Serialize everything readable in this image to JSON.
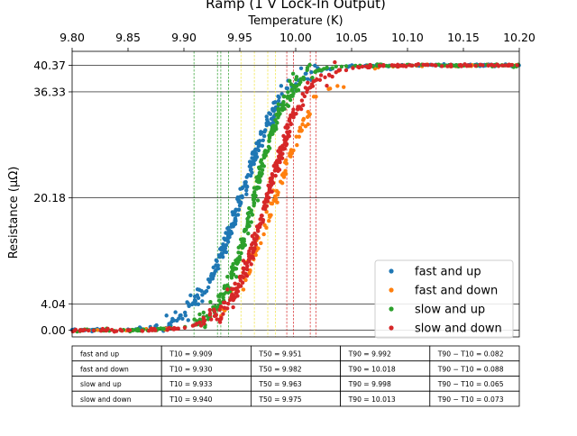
{
  "chart_data": {
    "type": "scatter",
    "title": "Ramp (1 V Lock-In Output)",
    "xlabel": "Temperature (K)",
    "ylabel": "Resistance (μΩ)",
    "xlim": [
      9.8,
      10.2
    ],
    "ylim": [
      -1.0,
      42.5
    ],
    "xticks": [
      "9.80",
      "9.85",
      "9.90",
      "9.95",
      "10.00",
      "10.05",
      "10.10",
      "10.15",
      "10.20"
    ],
    "yticks": [
      {
        "value": 0.0,
        "label": "0.00"
      },
      {
        "value": 4.04,
        "label": "4.04"
      },
      {
        "value": 20.18,
        "label": "20.18"
      },
      {
        "value": 36.33,
        "label": "36.33"
      },
      {
        "value": 40.37,
        "label": "40.37"
      }
    ],
    "grid": "horizontal lines at y ticks",
    "legend_position": "lower-right",
    "series": [
      {
        "name": "fast and up",
        "color": "#1f77b4",
        "T10": 9.909,
        "T50": 9.951,
        "T90": 9.992
      },
      {
        "name": "fast and down",
        "color": "#ff7f0e",
        "T10": 9.93,
        "T50": 9.982,
        "T90": 10.018
      },
      {
        "name": "slow and up",
        "color": "#2ca02c",
        "T10": 9.933,
        "T50": 9.963,
        "T90": 9.998
      },
      {
        "name": "slow and down",
        "color": "#d62728",
        "T10": 9.94,
        "T50": 9.975,
        "T90": 10.013
      }
    ],
    "marker_lines": [
      {
        "x": 9.909,
        "color": "#2ca02c"
      },
      {
        "x": 9.93,
        "color": "#2ca02c"
      },
      {
        "x": 9.933,
        "color": "#2ca02c"
      },
      {
        "x": 9.94,
        "color": "#2ca02c"
      },
      {
        "x": 9.951,
        "color": "#f0e442"
      },
      {
        "x": 9.963,
        "color": "#f0e442"
      },
      {
        "x": 9.975,
        "color": "#f0e442"
      },
      {
        "x": 9.982,
        "color": "#f0e442"
      },
      {
        "x": 9.992,
        "color": "#d62728"
      },
      {
        "x": 9.998,
        "color": "#d62728"
      },
      {
        "x": 10.013,
        "color": "#d62728"
      },
      {
        "x": 10.018,
        "color": "#d62728"
      }
    ],
    "table": [
      [
        "fast and up",
        "T10 = 9.909",
        "T50 = 9.951",
        "T90 = 9.992",
        "T90 − T10 = 0.082"
      ],
      [
        "fast and down",
        "T10 = 9.930",
        "T50 = 9.982",
        "T90 = 10.018",
        "T90 − T10 = 0.088"
      ],
      [
        "slow and up",
        "T10 = 9.933",
        "T50 = 9.963",
        "T90 = 9.998",
        "T90 − T10 = 0.065"
      ],
      [
        "slow and down",
        "T10 = 9.940",
        "T50 = 9.975",
        "T90 = 10.013",
        "T90 − T10 = 0.073"
      ]
    ]
  }
}
